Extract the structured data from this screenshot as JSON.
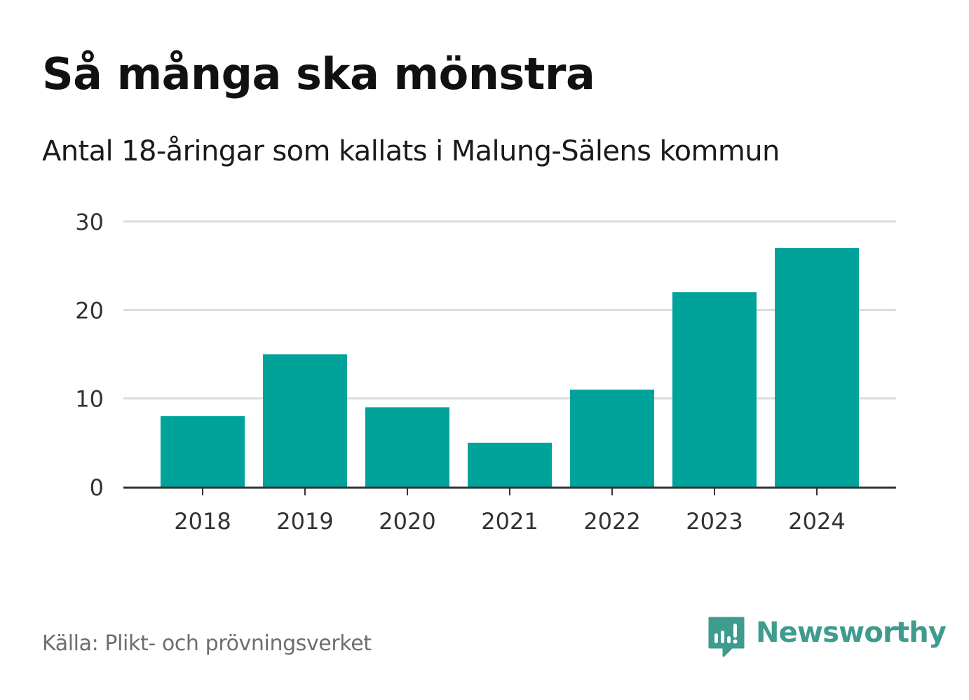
{
  "header": {
    "title": "Så många ska mönstra",
    "subtitle": "Antal 18-åringar som kallats i Malung-Sälens kommun"
  },
  "footer": {
    "source": "Källa: Plikt- och prövningsverket",
    "logo_text": "Newsworthy"
  },
  "colors": {
    "bar": "#00a39a",
    "grid": "#dcdcdc",
    "axis": "#333333",
    "tick_text": "#333333",
    "brand": "#3f9b8e"
  },
  "chart_data": {
    "type": "bar",
    "title": "Så många ska mönstra",
    "subtitle": "Antal 18-åringar som kallats i Malung-Sälens kommun",
    "xlabel": "",
    "ylabel": "",
    "categories": [
      "2018",
      "2019",
      "2020",
      "2021",
      "2022",
      "2023",
      "2024"
    ],
    "values": [
      8,
      15,
      9,
      5,
      11,
      22,
      27
    ],
    "ylim": [
      0,
      30
    ],
    "yticks": [
      "0",
      "10",
      "20",
      "30"
    ],
    "grid": true,
    "legend": "none"
  }
}
